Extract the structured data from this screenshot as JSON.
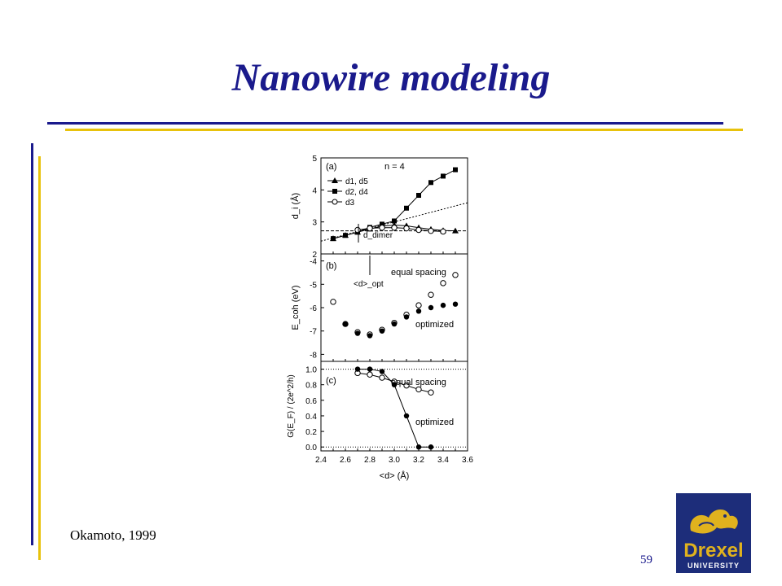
{
  "slide": {
    "title": "Nanowire modeling",
    "citation": "Okamoto, 1999",
    "page_number": "59"
  },
  "colors": {
    "title_blue": "#1a1a8c",
    "rule_blue": "#1a1a8c",
    "rule_gold": "#e8c20c",
    "logo_blue": "#1d2d7a",
    "logo_gold": "#e0b21e"
  },
  "logo": {
    "line1": "Drexel",
    "line2": "UNIVERSITY"
  },
  "chart_data": [
    {
      "type": "line",
      "panel_label": "(a)",
      "annotation": "n = 4",
      "ylabel": "d_i (Å)",
      "ylim": [
        2,
        5
      ],
      "yticks": [
        "2",
        "3",
        "4",
        "5"
      ],
      "xlim": [
        2.4,
        3.6
      ],
      "series": [
        {
          "name": "d1, d5",
          "marker": "filled-triangle",
          "x": [
            2.5,
            2.6,
            2.7,
            2.8,
            2.9,
            3.0,
            3.1,
            3.2,
            3.3,
            3.4,
            3.5
          ],
          "y": [
            2.48,
            2.58,
            2.68,
            2.78,
            2.87,
            2.9,
            2.88,
            2.82,
            2.77,
            2.73,
            2.72
          ]
        },
        {
          "name": "d2, d4",
          "marker": "filled-square",
          "x": [
            2.5,
            2.6,
            2.7,
            2.8,
            2.9,
            3.0,
            3.1,
            3.2,
            3.3,
            3.4,
            3.5
          ],
          "y": [
            2.48,
            2.58,
            2.68,
            2.83,
            2.93,
            3.03,
            3.43,
            3.83,
            4.23,
            4.43,
            4.63
          ]
        },
        {
          "name": "d3",
          "marker": "open-circle",
          "x": [
            2.7,
            2.8,
            2.9,
            3.0,
            3.1,
            3.2,
            3.3,
            3.4
          ],
          "y": [
            2.75,
            2.8,
            2.82,
            2.82,
            2.8,
            2.75,
            2.72,
            2.7
          ]
        }
      ],
      "reference_lines": {
        "diagonal": {
          "x": [
            2.4,
            3.6
          ],
          "y": [
            2.4,
            3.6
          ]
        },
        "dimer_level": 2.72
      },
      "annotations": [
        "d_dimer",
        "<d>_opt"
      ]
    },
    {
      "type": "scatter",
      "panel_label": "(b)",
      "ylabel": "E_coh (eV)",
      "ylim": [
        -8.3,
        -3.7
      ],
      "yticks": [
        "-4",
        "-5",
        "-6",
        "-7",
        "-8"
      ],
      "series": [
        {
          "name": "equal spacing",
          "marker": "open-circle",
          "x": [
            2.5,
            2.6,
            2.7,
            2.8,
            2.9,
            3.0,
            3.1,
            3.2,
            3.3,
            3.4,
            3.5
          ],
          "y": [
            -5.75,
            -6.7,
            -7.05,
            -7.15,
            -6.95,
            -6.65,
            -6.3,
            -5.9,
            -5.45,
            -4.95,
            -4.6
          ]
        },
        {
          "name": "optimized",
          "marker": "filled-circle",
          "x": [
            2.6,
            2.7,
            2.8,
            2.9,
            3.0,
            3.1,
            3.2,
            3.3,
            3.4,
            3.5
          ],
          "y": [
            -6.7,
            -7.1,
            -7.2,
            -7.0,
            -6.7,
            -6.4,
            -6.15,
            -6.0,
            -5.9,
            -5.85
          ]
        }
      ]
    },
    {
      "type": "line",
      "panel_label": "(c)",
      "ylabel": "G(E_F) / (2e^2/h)",
      "xlabel": "<d> (Å)",
      "ylim": [
        -0.05,
        1.1
      ],
      "yticks": [
        "0.0",
        "0.2",
        "0.4",
        "0.6",
        "0.8",
        "1.0"
      ],
      "xlim": [
        2.4,
        3.6
      ],
      "xticks": [
        "2.4",
        "2.6",
        "2.8",
        "3.0",
        "3.2",
        "3.4",
        "3.6"
      ],
      "series": [
        {
          "name": "equal spacing",
          "marker": "open-circle",
          "x": [
            2.7,
            2.8,
            2.9,
            3.0,
            3.1,
            3.2,
            3.3
          ],
          "y": [
            0.95,
            0.93,
            0.89,
            0.84,
            0.79,
            0.74,
            0.7
          ]
        },
        {
          "name": "optimized",
          "marker": "filled-circle",
          "x": [
            2.7,
            2.8,
            2.9,
            3.0,
            3.1,
            3.2,
            3.3
          ],
          "y": [
            1.0,
            1.0,
            0.97,
            0.8,
            0.4,
            0.0,
            0.0
          ]
        }
      ]
    }
  ]
}
